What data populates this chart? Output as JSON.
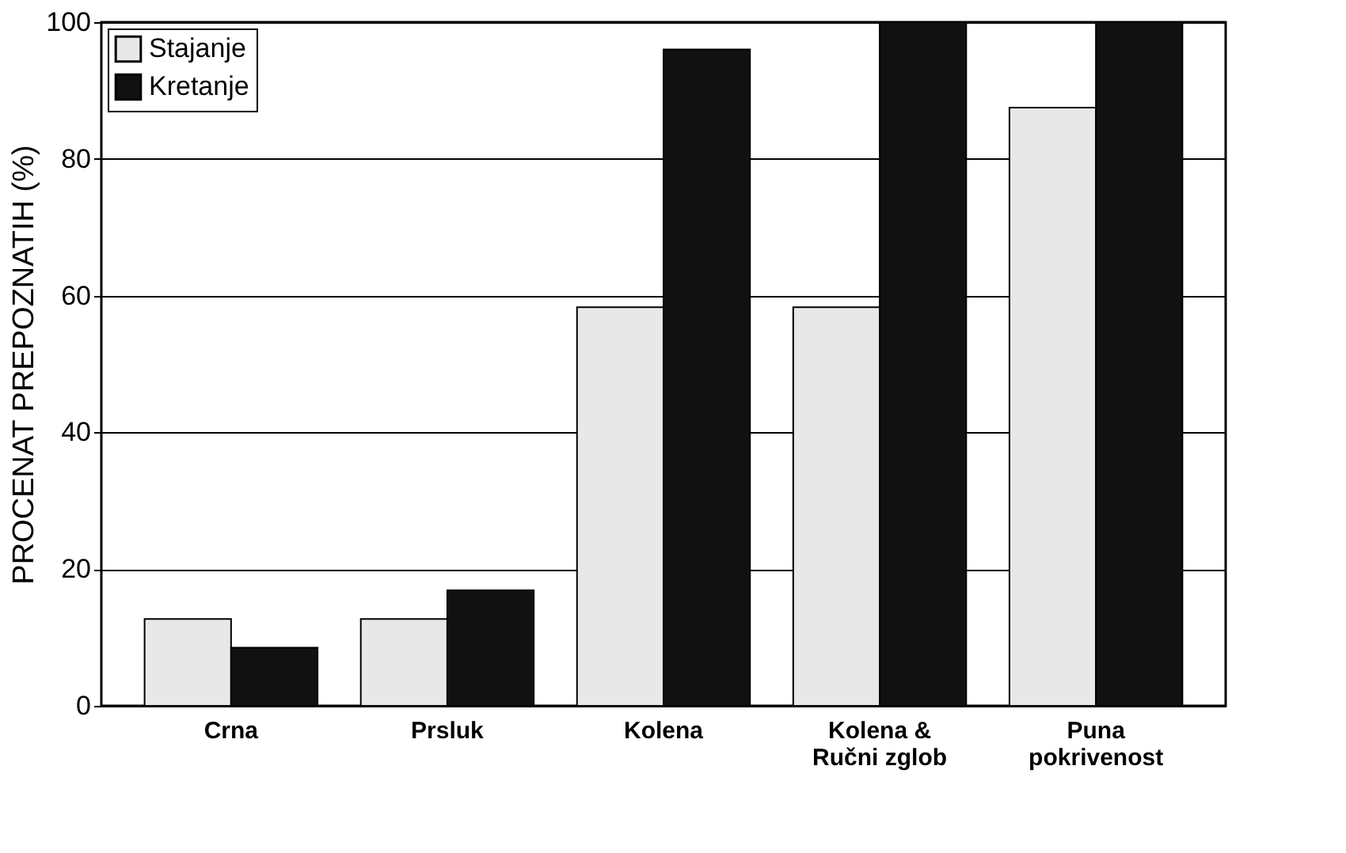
{
  "chart_data": {
    "type": "bar",
    "ylabel": "PROCENAT PREPOZNATIH (%)",
    "categories": [
      "Crna",
      "Prsluk",
      "Kolena",
      "Kolena &\nRučni zglob",
      "Puna\npokrivenost"
    ],
    "series": [
      {
        "name": "Stajanje",
        "color": "#e8e8e8",
        "values": [
          12.7,
          12.7,
          58.3,
          58.3,
          87.5
        ]
      },
      {
        "name": "Kretanje",
        "color": "#111111",
        "values": [
          8.5,
          16.9,
          96,
          100,
          100
        ]
      }
    ],
    "ylim": [
      0,
      100
    ],
    "yticks": [
      0,
      20,
      40,
      60,
      80,
      100
    ],
    "grid": "y",
    "legend": "top left"
  }
}
